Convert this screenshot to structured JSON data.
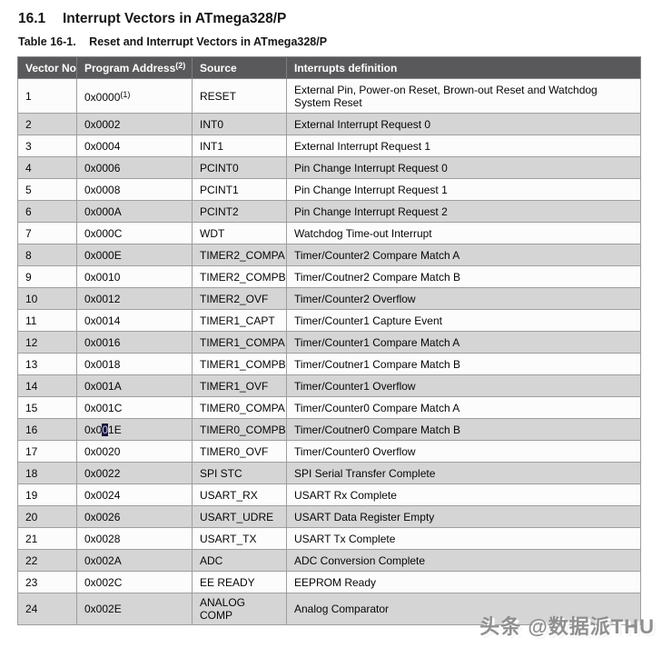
{
  "page": {
    "section_number": "16.1",
    "section_title": "Interrupt Vectors in ATmega328/P",
    "caption_label": "Table 16-1.",
    "caption_text": "Reset and Interrupt Vectors in ATmega328/P"
  },
  "table": {
    "headers": [
      {
        "label": "Vector No",
        "sup": ""
      },
      {
        "label": "Program Address",
        "sup": "(2)"
      },
      {
        "label": "Source",
        "sup": ""
      },
      {
        "label": "Interrupts definition",
        "sup": ""
      }
    ],
    "rows": [
      {
        "vector_no": "1",
        "address": "0x0000",
        "address_sup": "(1)",
        "source": "RESET",
        "definition": "External Pin, Power-on Reset, Brown-out Reset and Watchdog System Reset"
      },
      {
        "vector_no": "2",
        "address": "0x0002",
        "source": "INT0",
        "definition": "External Interrupt Request 0"
      },
      {
        "vector_no": "3",
        "address": "0x0004",
        "source": "INT1",
        "definition": "External Interrupt Request 1"
      },
      {
        "vector_no": "4",
        "address": "0x0006",
        "source": "PCINT0",
        "definition": "Pin Change Interrupt Request 0"
      },
      {
        "vector_no": "5",
        "address": "0x0008",
        "source": "PCINT1",
        "definition": "Pin Change Interrupt Request 1"
      },
      {
        "vector_no": "6",
        "address": "0x000A",
        "source": "PCINT2",
        "definition": "Pin Change Interrupt Request 2"
      },
      {
        "vector_no": "7",
        "address": "0x000C",
        "source": "WDT",
        "definition": "Watchdog Time-out Interrupt"
      },
      {
        "vector_no": "8",
        "address": "0x000E",
        "source": "TIMER2_COMPA",
        "definition": "Timer/Counter2 Compare Match A"
      },
      {
        "vector_no": "9",
        "address": "0x0010",
        "source": "TIMER2_COMPB",
        "definition": "Timer/Coutner2 Compare Match B"
      },
      {
        "vector_no": "10",
        "address": "0x0012",
        "source": "TIMER2_OVF",
        "definition": "Timer/Counter2 Overflow"
      },
      {
        "vector_no": "11",
        "address": "0x0014",
        "source": "TIMER1_CAPT",
        "definition": "Timer/Counter1 Capture Event"
      },
      {
        "vector_no": "12",
        "address": "0x0016",
        "source": "TIMER1_COMPA",
        "definition": "Timer/Counter1 Compare Match A"
      },
      {
        "vector_no": "13",
        "address": "0x0018",
        "source": "TIMER1_COMPB",
        "definition": "Timer/Coutner1 Compare Match B"
      },
      {
        "vector_no": "14",
        "address": "0x001A",
        "source": "TIMER1_OVF",
        "definition": "Timer/Counter1 Overflow"
      },
      {
        "vector_no": "15",
        "address": "0x001C",
        "source": "TIMER0_COMPA",
        "definition": "Timer/Counter0 Compare Match A"
      },
      {
        "vector_no": "16",
        "address": "0x001E",
        "address_highlight": {
          "pre": "0x0",
          "sel": "0",
          "post": "1E"
        },
        "source": "TIMER0_COMPB",
        "definition": "Timer/Coutner0 Compare Match B"
      },
      {
        "vector_no": "17",
        "address": "0x0020",
        "source": "TIMER0_OVF",
        "definition": "Timer/Counter0 Overflow"
      },
      {
        "vector_no": "18",
        "address": "0x0022",
        "source": "SPI STC",
        "definition": "SPI Serial Transfer Complete"
      },
      {
        "vector_no": "19",
        "address": "0x0024",
        "source": "USART_RX",
        "definition": "USART Rx Complete"
      },
      {
        "vector_no": "20",
        "address": "0x0026",
        "source": "USART_UDRE",
        "definition": "USART Data Register Empty"
      },
      {
        "vector_no": "21",
        "address": "0x0028",
        "source": "USART_TX",
        "definition": "USART Tx Complete"
      },
      {
        "vector_no": "22",
        "address": "0x002A",
        "source": "ADC",
        "definition": "ADC Conversion Complete"
      },
      {
        "vector_no": "23",
        "address": "0x002C",
        "source": "EE READY",
        "definition": "EEPROM Ready"
      },
      {
        "vector_no": "24",
        "address": "0x002E",
        "source": "ANALOG COMP",
        "definition": "Analog Comparator"
      }
    ]
  },
  "watermark": {
    "text": "头条 @数据派THU"
  },
  "colors": {
    "header_bg": "#59595b",
    "even_row_bg": "#d5d5d5",
    "odd_row_bg": "#fcfcfc",
    "border": "#9e9ea0",
    "selection_bg": "#16163e"
  }
}
